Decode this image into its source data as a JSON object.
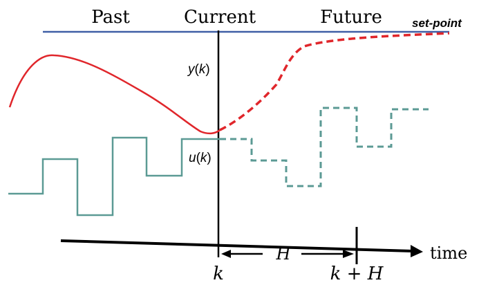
{
  "labels": {
    "past": "Past",
    "current": "Current",
    "future": "Future",
    "setpoint": "set-point",
    "y_var": "y",
    "u_var": "u",
    "k_arg": "k",
    "time": "time",
    "k": "k",
    "k_plus_h": "k + H",
    "h": "H"
  },
  "colors": {
    "setpoint_line": "#3f5fa6",
    "output_curve": "#e0262b",
    "input_signal": "#5b9a94",
    "axis": "#000000"
  }
}
